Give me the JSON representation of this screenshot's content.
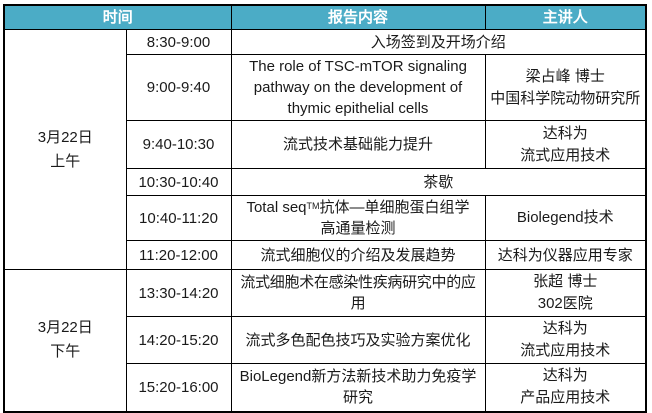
{
  "table": {
    "headers": [
      "时间",
      "报告内容",
      "主讲人"
    ],
    "date_groups": [
      {
        "line1": "3月22日",
        "line2": "上午"
      },
      {
        "line1": "3月22日",
        "line2": "下午"
      }
    ],
    "rows": [
      {
        "time": "8:30-9:00",
        "content": "入场签到及开场介绍"
      },
      {
        "time": "9:00-9:40",
        "content_lines": [
          "The role of TSC-mTOR signaling",
          "pathway on the development of",
          "thymic epithelial cells"
        ],
        "speaker_lines": [
          "梁占峰 博士",
          "中国科学院动物研究所"
        ]
      },
      {
        "time": "9:40-10:30",
        "content": "流式技术基础能力提升",
        "speaker_lines": [
          "达科为",
          "流式应用技术"
        ]
      },
      {
        "time": "10:30-10:40",
        "content": "茶歇"
      },
      {
        "time": "10:40-11:20",
        "content_pre": "Total seq",
        "content_sup": "TM",
        "content_cjk": "抗体—单细胞蛋白组学",
        "content_line2": "高通量检测",
        "speaker_lines": [
          "Biolegend技术"
        ]
      },
      {
        "time": "11:20-12:00",
        "content": "流式细胞仪的介绍及发展趋势",
        "speaker_lines": [
          "达科为仪器应用专家"
        ]
      },
      {
        "time": "13:30-14:20",
        "content": "流式细胞术在感染性疾病研究中的应用",
        "speaker_lines": [
          "张超 博士",
          "302医院"
        ]
      },
      {
        "time": "14:20-15:20",
        "content": "流式多色配色技巧及实验方案优化",
        "speaker_lines": [
          "达科为",
          "流式应用技术"
        ]
      },
      {
        "time": "15:20-16:00",
        "content_lines": [
          "BioLegend新方法新技术助力免疫学",
          "研究"
        ],
        "speaker_lines": [
          "达科为",
          "产品应用技术"
        ]
      }
    ],
    "colors": {
      "header_bg": "#4BACC6",
      "header_text": "#FFFFFF",
      "border": "#000000",
      "body_text": "#1A1A1A"
    }
  }
}
